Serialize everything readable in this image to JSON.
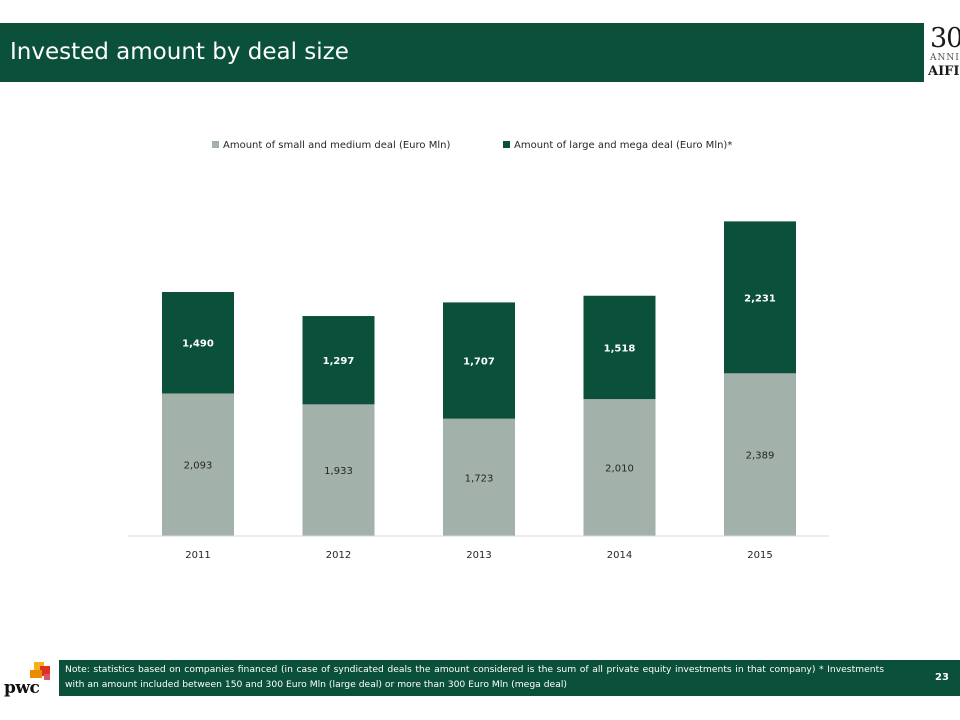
{
  "header": {
    "title": "Invested amount by deal size"
  },
  "logo": {
    "number": "30",
    "anni": "ANNI",
    "name": "AIFI"
  },
  "chart_data": {
    "type": "bar",
    "stacked": true,
    "categories": [
      "2011",
      "2012",
      "2013",
      "2014",
      "2015"
    ],
    "series": [
      {
        "name": "Amount of small and medium deal (Euro Mln)",
        "color": "#a2b1aa",
        "values": [
          2093,
          1933,
          1723,
          2010,
          2389
        ],
        "labels": [
          "2,093",
          "1,933",
          "1,723",
          "2,010",
          "2,389"
        ]
      },
      {
        "name": "Amount of large and mega deal (Euro Mln)*",
        "color": "#0b503a",
        "values": [
          1490,
          1297,
          1707,
          1518,
          2231
        ],
        "labels": [
          "1,490",
          "1,297",
          "1,707",
          "1,518",
          "2,231"
        ]
      }
    ],
    "legend": "top",
    "grid": false
  },
  "footer": {
    "note": "Note: statistics based on companies financed (in case of syndicated deals the amount considered is the sum of all private equity investments in that company) * Investments with an amount included between 150 and 300 Euro Mln (large deal) or more than 300 Euro Mln (mega deal)",
    "page": "23",
    "brand": "pwc"
  }
}
